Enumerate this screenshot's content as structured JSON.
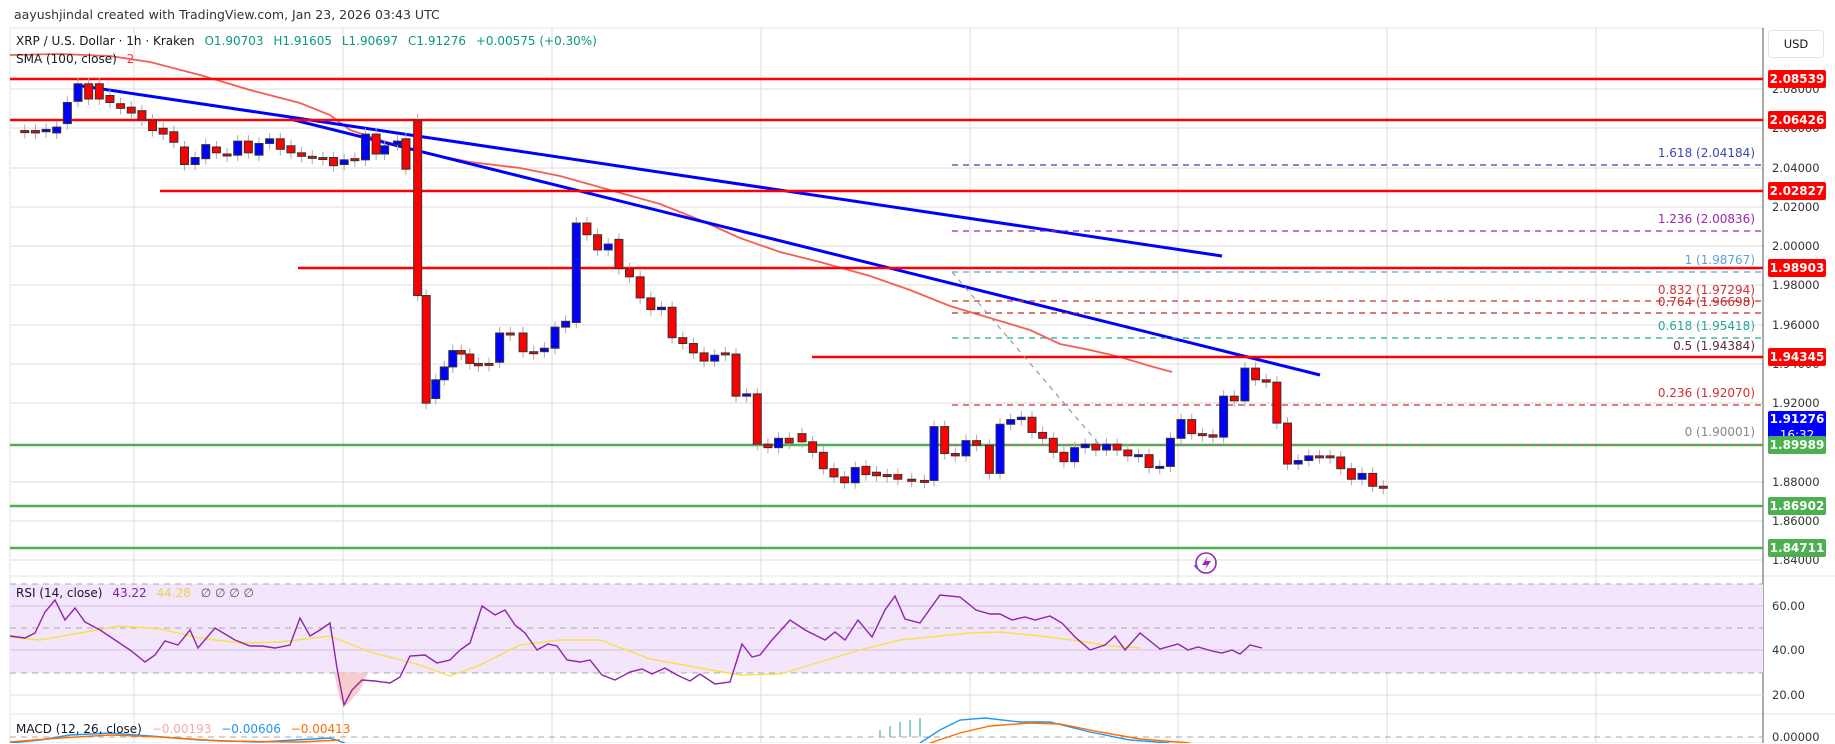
{
  "credit": "aayushjindal created with TradingView.com, Jan 23, 2026 03:43 UTC",
  "symbol": {
    "title": "XRP / U.S. Dollar · 1h · Kraken",
    "open": "O1.90703",
    "high": "H1.91605",
    "low": "L1.90697",
    "close": "C1.91276",
    "change": "+0.00575 (+0.30%)"
  },
  "sma": {
    "label": "SMA (100, close)",
    "value": "2",
    "color": "#f23645"
  },
  "currency_button": "USD",
  "price_axis": {
    "ticks": [
      "2.08000",
      "2.06000",
      "2.04000",
      "2.02000",
      "2.00000",
      "1.98000",
      "1.96000",
      "1.94000",
      "1.92000",
      "1.88000",
      "1.86000",
      "1.84000"
    ],
    "horizontal_levels": [
      {
        "value": "2.08539",
        "color": "#ff0000",
        "type": "resistance"
      },
      {
        "value": "2.06426",
        "color": "#ff0000",
        "type": "resistance"
      },
      {
        "value": "2.02827",
        "color": "#ff0000",
        "type": "resistance"
      },
      {
        "value": "1.98903",
        "color": "#ff0000",
        "type": "resistance"
      },
      {
        "value": "1.94345",
        "color": "#ff0000",
        "type": "resistance"
      },
      {
        "value": "1.89989",
        "color": "#4caf50",
        "type": "support"
      },
      {
        "value": "1.86902",
        "color": "#4caf50",
        "type": "support"
      },
      {
        "value": "1.84711",
        "color": "#4caf50",
        "type": "support"
      }
    ],
    "current_price": {
      "value": "1.91276",
      "countdown": "16:32",
      "color": "#0000ff"
    }
  },
  "fibonacci": [
    {
      "label": "1.618 (2.04184)",
      "color": "#3949ab"
    },
    {
      "label": "1.236 (2.00836)",
      "color": "#9c27b0"
    },
    {
      "label": "1 (1.98767)",
      "color": "#5ba3d9"
    },
    {
      "label": "0.832 (1.97294)",
      "color": "#d32f2f"
    },
    {
      "label": "0.764 (1.96698)",
      "color": "#c62828"
    },
    {
      "label": "0.618 (1.95418)",
      "color": "#26a69a"
    },
    {
      "label": "0.5 (1.94384)",
      "color": "#5d2a3a"
    },
    {
      "label": "0.236 (1.92070)",
      "color": "#d32f2f"
    },
    {
      "label": "0 (1.90001)",
      "color": "#888888"
    }
  ],
  "rsi": {
    "label": "RSI (14, close)",
    "value": "43.22",
    "ma_value": "44.28",
    "extras": "∅ ∅ ∅ ∅",
    "ticks": [
      "60.00",
      "40.00",
      "20.00"
    ],
    "color": "#7e1fa3",
    "ma_color": "#f7e04a"
  },
  "macd": {
    "label": "MACD (12, 26, close)",
    "histogram": "−0.00193",
    "macd": "−0.00606",
    "signal": "−0.00413",
    "tick": "0.00000"
  },
  "chart_data": {
    "type": "candlestick",
    "title": "XRP / U.S. Dollar · 1h · Kraken",
    "ylim": [
      1.835,
      2.095
    ],
    "trendlines": [
      "descending resistance from 2.083 to ~1.995",
      "descending resistance from 2.063 to ~1.935"
    ],
    "ohlc_last": {
      "open": 1.90703,
      "high": 1.91605,
      "low": 1.90697,
      "close": 1.91276
    }
  }
}
